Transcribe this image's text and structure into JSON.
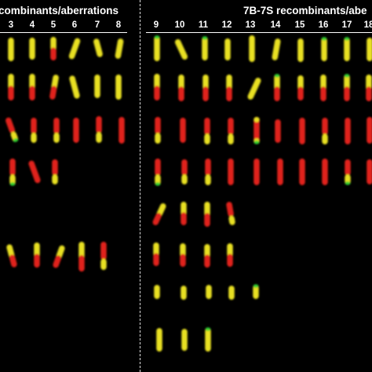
{
  "headers": {
    "left": "combinants/aberrations",
    "right": "7B-7S recombinants/abe"
  },
  "columns": {
    "left": [
      "3",
      "4",
      "5",
      "6",
      "7",
      "8"
    ],
    "right": [
      "9",
      "10",
      "11",
      "12",
      "13",
      "14",
      "15",
      "16",
      "17",
      "18"
    ]
  },
  "colors": {
    "background": "#000000",
    "text": "#ffffff",
    "yellow_signal": "#e8e020",
    "red_signal": "#e0201a",
    "green_signal": "#30d030"
  }
}
